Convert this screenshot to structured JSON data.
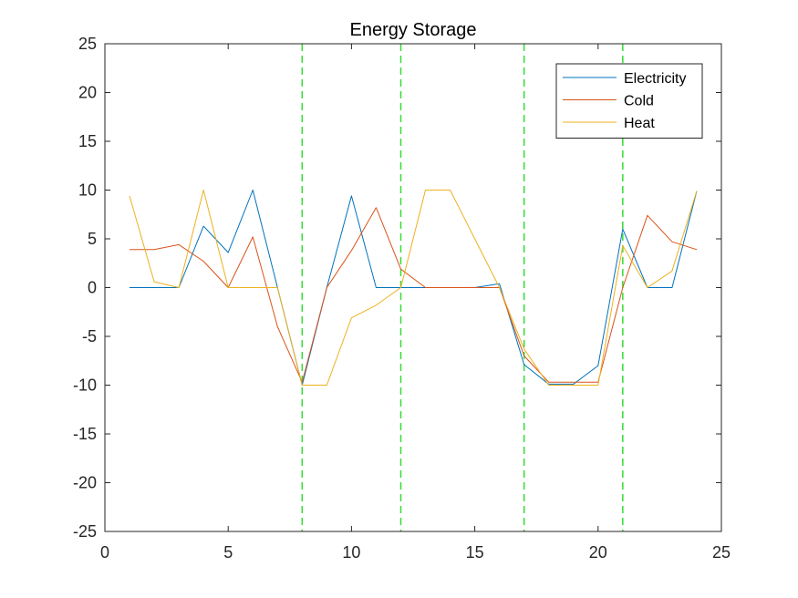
{
  "chart_data": {
    "type": "line",
    "title": "Energy Storage",
    "xlabel": "",
    "ylabel": "",
    "xlim": [
      0,
      25
    ],
    "ylim": [
      -25,
      25
    ],
    "xticks": [
      0,
      5,
      10,
      15,
      20,
      25
    ],
    "yticks": [
      -25,
      -20,
      -15,
      -10,
      -5,
      0,
      5,
      10,
      15,
      20,
      25
    ],
    "grid": false,
    "legend_position": "top-right",
    "x": [
      1,
      2,
      3,
      4,
      5,
      6,
      7,
      8,
      9,
      10,
      11,
      12,
      13,
      14,
      15,
      16,
      17,
      18,
      19,
      20,
      21,
      22,
      23,
      24
    ],
    "series": [
      {
        "name": "Electricity",
        "color": "#0072BD",
        "x": [
          1,
          2,
          3,
          4,
          5,
          6,
          7,
          8,
          9,
          10,
          11,
          12,
          13,
          14,
          15,
          16,
          17,
          18,
          19,
          20,
          21,
          22,
          23,
          24
        ],
        "values": [
          0,
          0,
          0,
          6.3,
          3.6,
          10,
          0,
          -10,
          0,
          9.4,
          0,
          0,
          0,
          0,
          0,
          0.4,
          -7.9,
          -9.9,
          -9.9,
          -8,
          6,
          0,
          0,
          9.9
        ]
      },
      {
        "name": "Cold",
        "color": "#D95319",
        "x": [
          1,
          2,
          3,
          4,
          5,
          6,
          7,
          8,
          9,
          10,
          11,
          12,
          13,
          14,
          15,
          16,
          17,
          18,
          19,
          20,
          21,
          22,
          23,
          24,
          25
        ],
        "values": [
          3.9,
          3.9,
          4.4,
          2.7,
          0,
          5.2,
          -4,
          -9.7,
          0,
          3.8,
          8.2,
          1.9,
          0,
          0,
          0,
          0,
          -7,
          -9.7,
          -9.7,
          -9.7,
          0,
          7.4,
          4.7,
          3.9,
          null
        ]
      },
      {
        "name": "Heat",
        "color": "#EDB120",
        "x": [
          1,
          2,
          3,
          4,
          5,
          6,
          7,
          8,
          9,
          10,
          11,
          12,
          13,
          14,
          15,
          16,
          17,
          18,
          19,
          20,
          21,
          22,
          23,
          24
        ],
        "values": [
          9.4,
          0.6,
          0,
          10,
          0,
          0,
          0,
          -10,
          -10,
          -3.1,
          -1.8,
          0,
          10,
          10,
          5,
          0,
          -6.3,
          -10,
          -10,
          -10,
          4.3,
          0,
          1.7,
          9.9
        ]
      }
    ],
    "vlines": {
      "x": [
        8,
        12,
        17,
        21
      ],
      "color": "#33DD33",
      "style": "dashed"
    }
  }
}
